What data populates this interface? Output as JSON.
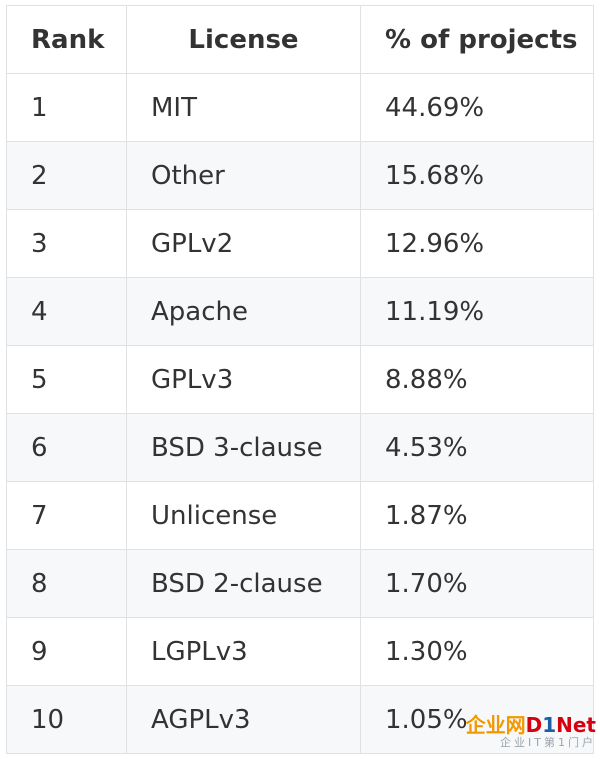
{
  "table": {
    "headers": [
      "Rank",
      "License",
      "% of projects"
    ],
    "rows": [
      {
        "rank": "1",
        "license": "MIT",
        "percent": "44.69%"
      },
      {
        "rank": "2",
        "license": "Other",
        "percent": "15.68%"
      },
      {
        "rank": "3",
        "license": "GPLv2",
        "percent": "12.96%"
      },
      {
        "rank": "4",
        "license": "Apache",
        "percent": "11.19%"
      },
      {
        "rank": "5",
        "license": "GPLv3",
        "percent": "8.88%"
      },
      {
        "rank": "6",
        "license": "BSD 3-clause",
        "percent": "4.53%"
      },
      {
        "rank": "7",
        "license": "Unlicense",
        "percent": "1.87%"
      },
      {
        "rank": "8",
        "license": "BSD 2-clause",
        "percent": "1.70%"
      },
      {
        "rank": "9",
        "license": "LGPLv3",
        "percent": "1.30%"
      },
      {
        "rank": "10",
        "license": "AGPLv3",
        "percent": "1.05%"
      }
    ]
  },
  "watermark": {
    "part1": "企业网",
    "part2": "D",
    "part3": "1",
    "part4": "Net",
    "subtitle": "企业IT第1门户"
  },
  "colors": {
    "border": "#dfe2e5",
    "stripe": "#f6f8fa",
    "text": "#333333",
    "watermark_orange": "#f39800",
    "watermark_red": "#d7000f",
    "watermark_blue": "#1a5ea8"
  }
}
